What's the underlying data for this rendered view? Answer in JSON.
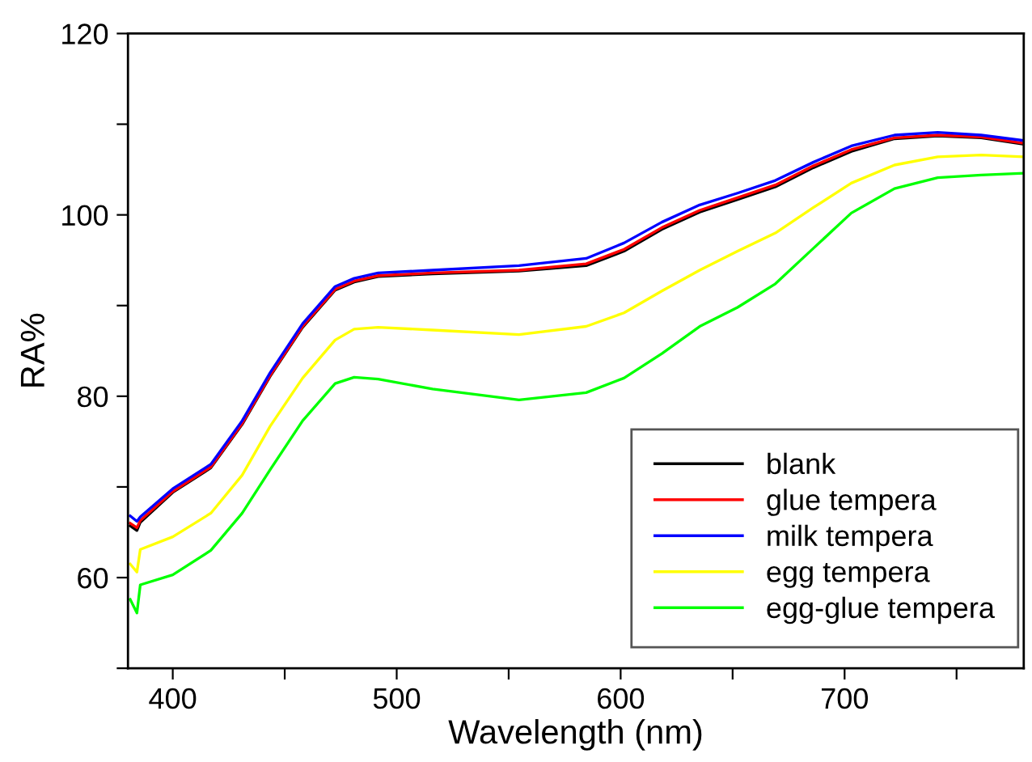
{
  "chart_data": {
    "type": "line",
    "xlabel": "Wavelength (nm)",
    "ylabel": "RA%",
    "x": [
      381,
      384,
      385.5,
      400,
      417,
      431,
      443.5,
      458,
      472.5,
      481,
      491.7,
      516,
      554.6,
      584.6,
      601.5,
      618.4,
      635.3,
      652.2,
      669.1,
      686,
      703,
      722.3,
      741.6,
      761,
      780
    ],
    "series": [
      {
        "name": "blank",
        "color": "#000000",
        "values": [
          65.7,
          65.2,
          66.1,
          69.4,
          72.1,
          76.9,
          82.2,
          87.6,
          91.7,
          92.6,
          93.2,
          93.5,
          93.8,
          94.4,
          96.0,
          98.4,
          100.3,
          101.7,
          103.1,
          105.2,
          107.0,
          108.4,
          108.7,
          108.5,
          107.8
        ]
      },
      {
        "name": "glue tempera",
        "color": "#ff0000",
        "values": [
          66.0,
          65.5,
          66.3,
          69.5,
          72.2,
          77.0,
          82.3,
          87.7,
          91.8,
          92.7,
          93.3,
          93.6,
          93.9,
          94.6,
          96.2,
          98.6,
          100.5,
          101.9,
          103.3,
          105.4,
          107.2,
          108.5,
          108.8,
          108.6,
          107.9
        ]
      },
      {
        "name": "milk tempera",
        "color": "#0000ff",
        "values": [
          66.8,
          66.2,
          66.7,
          69.8,
          72.5,
          77.3,
          82.6,
          88.0,
          92.1,
          93.0,
          93.6,
          93.9,
          94.4,
          95.2,
          96.9,
          99.2,
          101.1,
          102.4,
          103.8,
          105.8,
          107.6,
          108.8,
          109.1,
          108.8,
          108.2
        ]
      },
      {
        "name": "egg tempera",
        "color": "#ffff00",
        "values": [
          61.5,
          60.6,
          63.1,
          64.5,
          67.1,
          71.3,
          76.7,
          82.0,
          86.2,
          87.4,
          87.6,
          87.3,
          86.8,
          87.7,
          89.2,
          91.6,
          93.9,
          96.0,
          98.0,
          100.8,
          103.5,
          105.5,
          106.4,
          106.6,
          106.4
        ]
      },
      {
        "name": "egg-glue tempera",
        "color": "#00ff00",
        "values": [
          57.6,
          56.1,
          59.2,
          60.3,
          63.0,
          67.1,
          71.9,
          77.3,
          81.4,
          82.1,
          81.9,
          80.8,
          79.6,
          80.4,
          82.0,
          84.7,
          87.7,
          89.8,
          92.4,
          96.3,
          100.2,
          102.9,
          104.1,
          104.4,
          104.6
        ]
      }
    ],
    "xlim": [
      380,
      780
    ],
    "xticks": [
      400,
      {
        "value": 450,
        "label": null
      },
      500,
      {
        "value": 550,
        "label": null
      },
      600,
      {
        "value": 650,
        "label": null
      },
      700,
      {
        "value": 750,
        "label": null
      }
    ],
    "ylim": [
      50,
      120
    ],
    "yticks": [
      {
        "value": 50,
        "label": null
      },
      60,
      {
        "value": 70,
        "label": null
      },
      80,
      {
        "value": 90,
        "label": null
      },
      100,
      {
        "value": 110,
        "label": null
      },
      120
    ],
    "grid": false,
    "legend": "bottom right",
    "line_style": "solid",
    "marker": "none"
  }
}
